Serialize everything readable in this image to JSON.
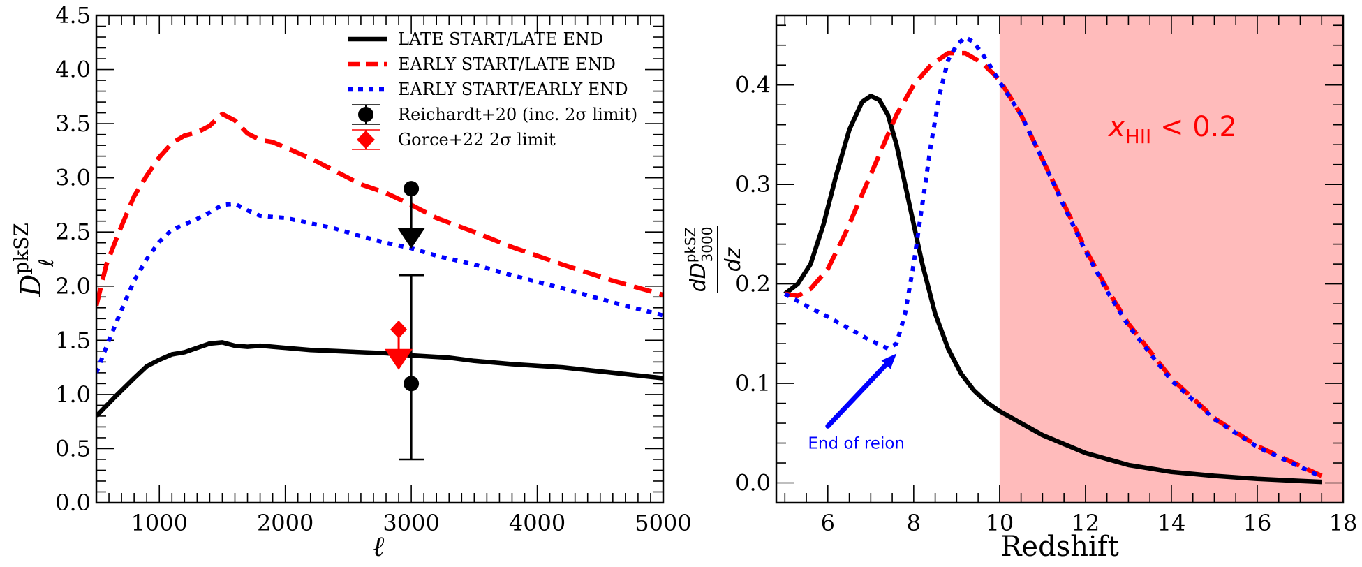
{
  "chart_data": [
    {
      "type": "line",
      "panel": "left",
      "xlabel": "ℓ",
      "ylabel_main": "D",
      "ylabel_sub": "ℓ",
      "ylabel_sup": "pkSZ",
      "xlim": [
        500,
        5000
      ],
      "ylim": [
        0,
        4.5
      ],
      "xticks": [
        1000,
        2000,
        3000,
        4000,
        5000
      ],
      "yticks": [
        0.0,
        0.5,
        1.0,
        1.5,
        2.0,
        2.5,
        3.0,
        3.5,
        4.0,
        4.5
      ],
      "xtick_labels": [
        "1000",
        "2000",
        "3000",
        "4000",
        "5000"
      ],
      "ytick_labels": [
        "0.0",
        "0.5",
        "1.0",
        "1.5",
        "2.0",
        "2.5",
        "3.0",
        "3.5",
        "4.0",
        "4.5"
      ],
      "series": [
        {
          "name": "LATE START/LATE END",
          "color": "#000000",
          "style": "solid",
          "x": [
            500,
            650,
            800,
            900,
            1000,
            1100,
            1200,
            1300,
            1400,
            1500,
            1600,
            1700,
            1800,
            1900,
            2000,
            2200,
            2400,
            2600,
            2800,
            3000,
            3300,
            3500,
            3800,
            4200,
            4600,
            5000
          ],
          "y": [
            0.8,
            0.98,
            1.15,
            1.26,
            1.32,
            1.37,
            1.39,
            1.43,
            1.47,
            1.48,
            1.45,
            1.44,
            1.45,
            1.44,
            1.43,
            1.41,
            1.4,
            1.39,
            1.38,
            1.36,
            1.34,
            1.31,
            1.28,
            1.25,
            1.2,
            1.15
          ]
        },
        {
          "name": "EARLY START/LATE END",
          "color": "#ff0000",
          "style": "dashed",
          "x": [
            500,
            580,
            680,
            800,
            900,
            1000,
            1100,
            1200,
            1300,
            1400,
            1500,
            1600,
            1700,
            1800,
            1900,
            2000,
            2200,
            2400,
            2600,
            2800,
            3000,
            3200,
            3500,
            3800,
            4200,
            4600,
            5000
          ],
          "y": [
            1.82,
            2.2,
            2.5,
            2.83,
            3.02,
            3.19,
            3.32,
            3.39,
            3.42,
            3.48,
            3.59,
            3.53,
            3.41,
            3.35,
            3.33,
            3.28,
            3.18,
            3.06,
            2.94,
            2.86,
            2.75,
            2.63,
            2.5,
            2.36,
            2.2,
            2.05,
            1.92
          ]
        },
        {
          "name": "EARLY START/EARLY END",
          "color": "#0000ff",
          "style": "dotted",
          "x": [
            500,
            600,
            700,
            800,
            900,
            1000,
            1100,
            1200,
            1300,
            1400,
            1500,
            1600,
            1700,
            1800,
            2000,
            2200,
            2400,
            2600,
            2800,
            3000,
            3200,
            3500,
            3800,
            4200,
            4600,
            5000
          ],
          "y": [
            1.2,
            1.5,
            1.78,
            2.05,
            2.25,
            2.41,
            2.52,
            2.57,
            2.62,
            2.68,
            2.75,
            2.76,
            2.7,
            2.65,
            2.63,
            2.58,
            2.53,
            2.46,
            2.4,
            2.35,
            2.28,
            2.2,
            2.1,
            1.98,
            1.85,
            1.73
          ]
        }
      ],
      "points": [
        {
          "name": "Reichardt+20 (inc. 2σ limit)",
          "color": "#000000",
          "marker": "circle",
          "x": 3000,
          "values": [
            2.9,
            1.1
          ],
          "errorbar": [
            0.4,
            2.1
          ],
          "upper_limit_from": 2.9,
          "upper_limit_to": 2.45
        },
        {
          "name": "Gorce+22 2σ limit",
          "color": "#ff0000",
          "marker": "diamond",
          "x": 2900,
          "value": 1.6,
          "upper_limit_to": 1.33
        }
      ],
      "legend": {
        "position": "top-right",
        "entries": [
          "LATE START/LATE END",
          "EARLY START/LATE END",
          "EARLY START/EARLY END",
          "Reichardt+20 (inc. 2σ limit)",
          "Gorce+22 2σ limit"
        ]
      }
    },
    {
      "type": "line",
      "panel": "right",
      "xlabel": "Redshift",
      "ylabel_num": "dD",
      "ylabel_sup": "pkSZ",
      "ylabel_sub": "3000",
      "ylabel_den": "dz",
      "xlim": [
        4.8,
        18
      ],
      "ylim": [
        -0.02,
        0.47
      ],
      "xticks": [
        6,
        8,
        10,
        12,
        14,
        16,
        18
      ],
      "yticks": [
        0.0,
        0.1,
        0.2,
        0.3,
        0.4
      ],
      "xtick_labels": [
        "6",
        "8",
        "10",
        "12",
        "14",
        "16",
        "18"
      ],
      "ytick_labels": [
        "0.0",
        "0.1",
        "0.2",
        "0.3",
        "0.4"
      ],
      "shaded_region": {
        "x": [
          10,
          18
        ],
        "color": "#ffbbbb",
        "label": "x",
        "label_sub": "HII",
        "label_rest": " < 0.2",
        "label_color": "#ff0000"
      },
      "annotation": {
        "text": "End of reion",
        "color": "#0000ff",
        "text_at": [
          5.7,
          0.04
        ],
        "arrow_to": [
          7.6,
          0.13
        ]
      },
      "series": [
        {
          "name": "LATE START/LATE END",
          "color": "#000000",
          "style": "solid",
          "x": [
            5.0,
            5.3,
            5.6,
            5.9,
            6.2,
            6.5,
            6.8,
            7.0,
            7.2,
            7.4,
            7.6,
            7.8,
            8.0,
            8.2,
            8.5,
            8.8,
            9.1,
            9.4,
            9.7,
            10.0,
            10.5,
            11.0,
            12.0,
            13.0,
            14.0,
            15.0,
            16.0,
            17.0,
            17.5
          ],
          "y": [
            0.19,
            0.2,
            0.22,
            0.26,
            0.31,
            0.355,
            0.383,
            0.389,
            0.385,
            0.37,
            0.34,
            0.3,
            0.26,
            0.22,
            0.17,
            0.135,
            0.11,
            0.093,
            0.081,
            0.072,
            0.06,
            0.048,
            0.03,
            0.018,
            0.011,
            0.007,
            0.004,
            0.002,
            0.001
          ]
        },
        {
          "name": "EARLY START/LATE END",
          "color": "#ff0000",
          "style": "dashed",
          "x": [
            5.0,
            5.3,
            5.6,
            6.0,
            6.4,
            6.8,
            7.2,
            7.6,
            8.0,
            8.4,
            8.8,
            9.2,
            9.6,
            10.0,
            10.5,
            11.0,
            11.5,
            12.0,
            12.5,
            13.0,
            14.0,
            15.0,
            16.0,
            17.0,
            17.5
          ],
          "y": [
            0.19,
            0.188,
            0.195,
            0.215,
            0.25,
            0.29,
            0.33,
            0.37,
            0.4,
            0.42,
            0.432,
            0.432,
            0.422,
            0.405,
            0.37,
            0.325,
            0.28,
            0.235,
            0.195,
            0.16,
            0.105,
            0.065,
            0.037,
            0.017,
            0.007
          ]
        },
        {
          "name": "EARLY START/EARLY END",
          "color": "#0000ff",
          "style": "dotted",
          "x": [
            5.0,
            5.5,
            6.0,
            6.5,
            7.0,
            7.4,
            7.6,
            7.8,
            8.0,
            8.2,
            8.4,
            8.6,
            8.8,
            9.0,
            9.2,
            9.4,
            9.7,
            10.0,
            10.5,
            11.0,
            11.5,
            12.0,
            12.5,
            13.0,
            14.0,
            15.0,
            16.0,
            17.0,
            17.5
          ],
          "y": [
            0.19,
            0.178,
            0.167,
            0.155,
            0.143,
            0.135,
            0.14,
            0.17,
            0.22,
            0.28,
            0.34,
            0.39,
            0.425,
            0.44,
            0.448,
            0.443,
            0.425,
            0.403,
            0.37,
            0.325,
            0.278,
            0.233,
            0.193,
            0.158,
            0.103,
            0.064,
            0.036,
            0.016,
            0.006
          ]
        }
      ]
    }
  ]
}
